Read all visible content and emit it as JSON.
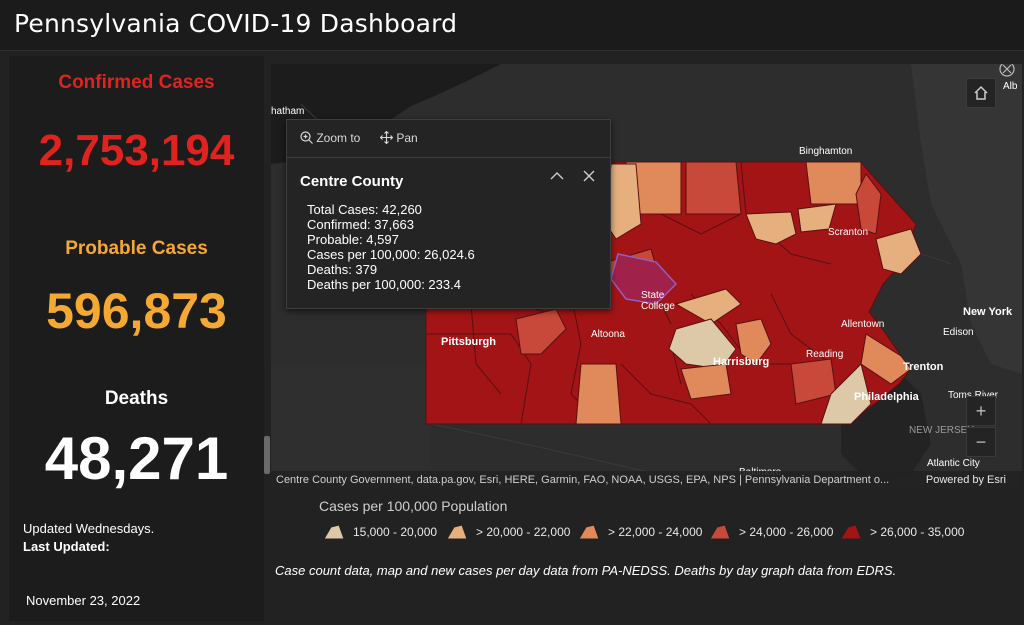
{
  "header": {
    "title": "Pennsylvania COVID-19 Dashboard"
  },
  "stats": {
    "confirmed": {
      "label": "Confirmed Cases",
      "value": "2,753,194",
      "color": "#e0231f"
    },
    "probable": {
      "label": "Probable Cases",
      "value": "596,873",
      "color": "#f5a932"
    },
    "deaths": {
      "label": "Deaths",
      "value": "48,271",
      "color": "#ffffff"
    }
  },
  "update": {
    "frequency": "Updated Wednesdays.",
    "last_label": "Last Updated",
    "date": "November 23, 2022"
  },
  "map": {
    "cities": [
      "Binghamton",
      "Scranton",
      "Allentown",
      "Edison",
      "New York",
      "Trenton",
      "Philadelphia",
      "Reading",
      "Harrisburg",
      "Altoona",
      "State College",
      "Pittsburgh",
      "Toms River",
      "NEW JERSEY",
      "Atlantic City",
      "Baltimore",
      "hatham",
      "Alb"
    ],
    "attribution": "Centre County Government, data.pa.gov, Esri, HERE, Garmin, FAO, NOAA, USGS, EPA, NPS | Pennsylvania Department o...",
    "powered_by": "Powered by Esri",
    "icons": {
      "home": "home-icon",
      "expand": "expand-icon",
      "zoom_in": "plus-icon",
      "zoom_out": "minus-icon"
    }
  },
  "popup": {
    "zoom_to_label": "Zoom to",
    "pan_label": "Pan",
    "title": "Centre County",
    "details": [
      "Total Cases: 42,260",
      "Confirmed: 37,663",
      "Probable: 4,597",
      "Cases per 100,000: 26,024.6",
      "Deaths: 379",
      "Deaths per 100,000: 233.4"
    ]
  },
  "legend": {
    "title": "Cases per 100,000 Population",
    "items": [
      {
        "label": "15,000 - 20,000",
        "color": "#ddc8a8"
      },
      {
        "label": "> 20,000 - 22,000",
        "color": "#e5b07e"
      },
      {
        "label": "> 22,000 - 24,000",
        "color": "#e08a5c"
      },
      {
        "label": "> 24,000 - 26,000",
        "color": "#c8483a"
      },
      {
        "label": "> 26,000 - 35,000",
        "color": "#a31416"
      }
    ]
  },
  "footer": {
    "source_note": "Case count data, map and new cases per day data from PA-NEDSS.  Deaths by day graph data from EDRS."
  }
}
